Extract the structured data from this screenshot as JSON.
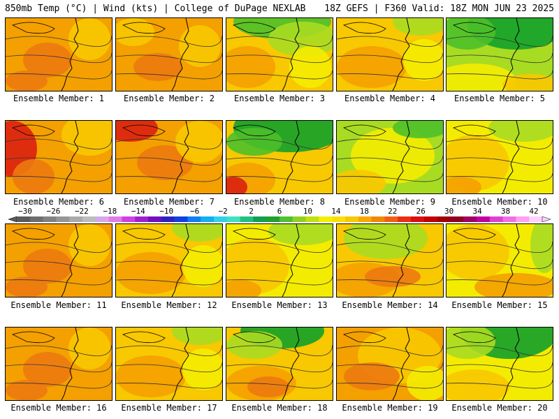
{
  "header": {
    "left": "850mb Temp (°C) | Wind (kts) | College of DuPage NEXLAB",
    "right": "18Z GEFS | F360 Valid: 18Z MON JUN 23 2025"
  },
  "colors": {
    "green_dark": "#12a12a",
    "green": "#4cc02a",
    "lime": "#a8dc22",
    "yellow": "#f4ec00",
    "gold": "#f8c800",
    "orange": "#f4a000",
    "orange_dark": "#ec7a10",
    "red": "#dc2010"
  },
  "colorbar": {
    "tick_labels": [
      "−30",
      "−26",
      "−22",
      "−18",
      "−14",
      "−10",
      "−6",
      "−2",
      "2",
      "6",
      "10",
      "14",
      "18",
      "22",
      "26",
      "30",
      "34",
      "38",
      "42"
    ],
    "colors": [
      "#5a5a5a",
      "#6e6e6e",
      "#828282",
      "#969696",
      "#aaaaaa",
      "#bcbcbc",
      "#d4a8e6",
      "#e07ce8",
      "#d040e0",
      "#a020d0",
      "#7010c0",
      "#3020c0",
      "#1040e0",
      "#1080f0",
      "#10b0f0",
      "#30d0e8",
      "#40e0c0",
      "#20c080",
      "#10a050",
      "#20a030",
      "#50c030",
      "#90d020",
      "#c0e010",
      "#f0f000",
      "#f8e000",
      "#f8c800",
      "#f8a800",
      "#f08800",
      "#f06010",
      "#e83010",
      "#d81010",
      "#c00000",
      "#a00000",
      "#900020",
      "#a00060",
      "#c000a0",
      "#e040d0",
      "#f070e0",
      "#ffa0f0",
      "#ffd0ff"
    ]
  },
  "maps": [
    {
      "member": "Ensemble Member: 1",
      "style": 0
    },
    {
      "member": "Ensemble Member: 2",
      "style": 1
    },
    {
      "member": "Ensemble Member: 3",
      "style": 2
    },
    {
      "member": "Ensemble Member: 4",
      "style": 3
    },
    {
      "member": "Ensemble Member: 5",
      "style": 4
    },
    {
      "member": "Ensemble Member: 6",
      "style": 5
    },
    {
      "member": "Ensemble Member: 7",
      "style": 6
    },
    {
      "member": "Ensemble Member: 8",
      "style": 7
    },
    {
      "member": "Ensemble Member: 9",
      "style": 8
    },
    {
      "member": "Ensemble Member: 10",
      "style": 9
    },
    {
      "member": "Ensemble Member: 11",
      "style": 0
    },
    {
      "member": "Ensemble Member: 12",
      "style": 3
    },
    {
      "member": "Ensemble Member: 13",
      "style": 9
    },
    {
      "member": "Ensemble Member: 14",
      "style": 10
    },
    {
      "member": "Ensemble Member: 15",
      "style": 11
    },
    {
      "member": "Ensemble Member: 16",
      "style": 0
    },
    {
      "member": "Ensemble Member: 17",
      "style": 3
    },
    {
      "member": "Ensemble Member: 18",
      "style": 12
    },
    {
      "member": "Ensemble Member: 19",
      "style": 13
    },
    {
      "member": "Ensemble Member: 20",
      "style": 14
    }
  ]
}
